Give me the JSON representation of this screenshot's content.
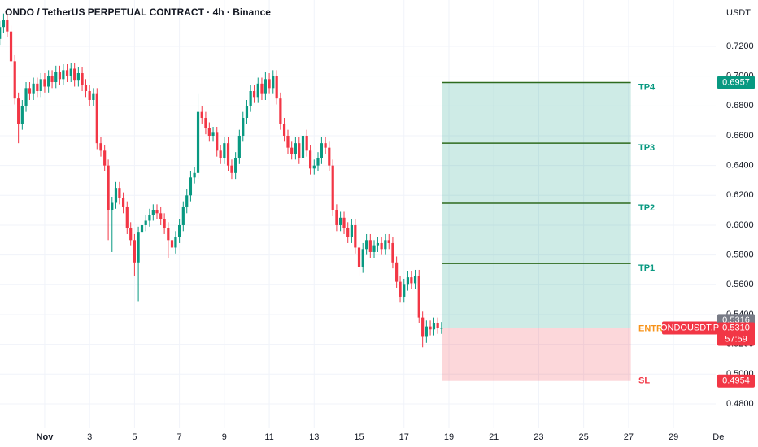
{
  "chart_data": {
    "type": "candlestick",
    "title": "ONDO / TetherUS PERPETUAL CONTRACT · 4h · Binance",
    "currency": "USDT",
    "up_color": "#089981",
    "down_color": "#f23645",
    "grid": true,
    "xlim": [
      -0.99,
      30.88
    ],
    "xticks": [
      {
        "value": 1,
        "label": "Nov"
      },
      3,
      5,
      7,
      9,
      11,
      13,
      15,
      17,
      19,
      21,
      23,
      25,
      27,
      29,
      {
        "value": 31,
        "label": "De"
      }
    ],
    "ylim": [
      0.4636,
      0.7511
    ],
    "yticks": [
      {
        "value": 0.48,
        "label": "0.4800"
      },
      {
        "value": 0.5,
        "label": "0.5000"
      },
      {
        "value": 0.52,
        "label": "0.5200"
      },
      {
        "value": 0.54,
        "label": "0.5400"
      },
      {
        "value": 0.56,
        "label": "0.5600"
      },
      {
        "value": 0.58,
        "label": "0.5800"
      },
      {
        "value": 0.6,
        "label": "0.6000"
      },
      {
        "value": 0.62,
        "label": "0.6200"
      },
      {
        "value": 0.64,
        "label": "0.6400"
      },
      {
        "value": 0.66,
        "label": "0.6600"
      },
      {
        "value": 0.68,
        "label": "0.6800"
      },
      {
        "value": 0.7,
        "label": "0.7000"
      },
      {
        "value": 0.72,
        "label": "0.7200"
      }
    ],
    "x": [
      -1,
      -0.83,
      -0.67,
      -0.5,
      -0.33,
      -0.17,
      0,
      0.17,
      0.33,
      0.5,
      0.67,
      0.83,
      1,
      1.17,
      1.33,
      1.5,
      1.67,
      1.83,
      2,
      2.17,
      2.33,
      2.5,
      2.67,
      2.83,
      3,
      3.17,
      3.33,
      3.5,
      3.67,
      3.83,
      4,
      4.17,
      4.33,
      4.5,
      4.67,
      4.83,
      5,
      5.17,
      5.33,
      5.5,
      5.67,
      5.83,
      6,
      6.17,
      6.33,
      6.5,
      6.67,
      6.83,
      7,
      7.17,
      7.33,
      7.5,
      7.67,
      7.83,
      8,
      8.17,
      8.33,
      8.5,
      8.67,
      8.83,
      9,
      9.17,
      9.33,
      9.5,
      9.67,
      9.83,
      10,
      10.17,
      10.33,
      10.5,
      10.67,
      10.83,
      11,
      11.17,
      11.33,
      11.5,
      11.67,
      11.83,
      12,
      12.17,
      12.33,
      12.5,
      12.67,
      12.83,
      13,
      13.17,
      13.33,
      13.5,
      13.67,
      13.83,
      14,
      14.17,
      14.33,
      14.5,
      14.67,
      14.83,
      15,
      15.17,
      15.33,
      15.5,
      15.67,
      15.83,
      16,
      16.17,
      16.33,
      16.5,
      16.67,
      16.83,
      17,
      17.17,
      17.33,
      17.5,
      17.67,
      17.83,
      18,
      18.17,
      18.33,
      18.5,
      18.67
    ],
    "open": [
      0.725,
      0.733,
      0.738,
      0.73,
      0.71,
      0.685,
      0.668,
      0.68,
      0.692,
      0.688,
      0.695,
      0.69,
      0.698,
      0.693,
      0.7,
      0.696,
      0.703,
      0.698,
      0.704,
      0.7,
      0.705,
      0.697,
      0.702,
      0.694,
      0.69,
      0.684,
      0.688,
      0.655,
      0.65,
      0.64,
      0.61,
      0.615,
      0.625,
      0.618,
      0.612,
      0.598,
      0.59,
      0.575,
      0.595,
      0.6,
      0.603,
      0.607,
      0.61,
      0.608,
      0.604,
      0.598,
      0.59,
      0.585,
      0.592,
      0.6,
      0.612,
      0.62,
      0.632,
      0.635,
      0.676,
      0.672,
      0.665,
      0.66,
      0.662,
      0.65,
      0.645,
      0.655,
      0.64,
      0.635,
      0.645,
      0.66,
      0.672,
      0.68,
      0.69,
      0.686,
      0.695,
      0.688,
      0.698,
      0.692,
      0.7,
      0.685,
      0.668,
      0.66,
      0.652,
      0.648,
      0.655,
      0.645,
      0.66,
      0.65,
      0.638,
      0.64,
      0.645,
      0.655,
      0.652,
      0.64,
      0.61,
      0.6,
      0.605,
      0.598,
      0.592,
      0.6,
      0.585,
      0.572,
      0.584,
      0.59,
      0.582,
      0.586,
      0.588,
      0.584,
      0.59,
      0.588,
      0.575,
      0.562,
      0.552,
      0.56,
      0.565,
      0.561,
      0.566,
      0.538,
      0.525,
      0.532,
      0.53,
      0.534,
      0.531
    ],
    "high": [
      0.737,
      0.742,
      0.742,
      0.734,
      0.714,
      0.689,
      0.684,
      0.696,
      0.696,
      0.699,
      0.699,
      0.702,
      0.702,
      0.704,
      0.704,
      0.707,
      0.707,
      0.708,
      0.708,
      0.709,
      0.709,
      0.706,
      0.706,
      0.698,
      0.694,
      0.692,
      0.692,
      0.659,
      0.654,
      0.644,
      0.619,
      0.629,
      0.629,
      0.622,
      0.616,
      0.602,
      0.594,
      0.599,
      0.604,
      0.607,
      0.611,
      0.614,
      0.614,
      0.612,
      0.608,
      0.602,
      0.594,
      0.596,
      0.604,
      0.616,
      0.624,
      0.636,
      0.639,
      0.688,
      0.68,
      0.676,
      0.669,
      0.666,
      0.666,
      0.654,
      0.659,
      0.659,
      0.644,
      0.649,
      0.664,
      0.676,
      0.684,
      0.694,
      0.694,
      0.699,
      0.699,
      0.703,
      0.702,
      0.704,
      0.704,
      0.689,
      0.672,
      0.664,
      0.656,
      0.659,
      0.659,
      0.664,
      0.664,
      0.654,
      0.644,
      0.649,
      0.659,
      0.659,
      0.656,
      0.644,
      0.614,
      0.609,
      0.609,
      0.602,
      0.604,
      0.604,
      0.589,
      0.588,
      0.594,
      0.594,
      0.59,
      0.592,
      0.592,
      0.594,
      0.594,
      0.592,
      0.579,
      0.566,
      0.564,
      0.569,
      0.569,
      0.57,
      0.57,
      0.542,
      0.536,
      0.536,
      0.538,
      0.538,
      0.535
    ],
    "low": [
      0.721,
      0.729,
      0.726,
      0.706,
      0.681,
      0.655,
      0.664,
      0.676,
      0.684,
      0.684,
      0.686,
      0.686,
      0.689,
      0.689,
      0.692,
      0.692,
      0.694,
      0.694,
      0.696,
      0.696,
      0.693,
      0.693,
      0.69,
      0.686,
      0.68,
      0.68,
      0.651,
      0.646,
      0.636,
      0.59,
      0.582,
      0.611,
      0.614,
      0.608,
      0.594,
      0.586,
      0.566,
      0.549,
      0.591,
      0.596,
      0.599,
      0.603,
      0.604,
      0.6,
      0.594,
      0.578,
      0.572,
      0.581,
      0.588,
      0.596,
      0.608,
      0.616,
      0.628,
      0.631,
      0.668,
      0.661,
      0.656,
      0.656,
      0.646,
      0.641,
      0.641,
      0.636,
      0.631,
      0.631,
      0.641,
      0.656,
      0.668,
      0.676,
      0.682,
      0.682,
      0.684,
      0.684,
      0.688,
      0.688,
      0.681,
      0.664,
      0.656,
      0.648,
      0.644,
      0.644,
      0.641,
      0.641,
      0.646,
      0.634,
      0.634,
      0.636,
      0.641,
      0.648,
      0.636,
      0.606,
      0.596,
      0.596,
      0.594,
      0.588,
      0.588,
      0.581,
      0.566,
      0.568,
      0.58,
      0.578,
      0.578,
      0.582,
      0.58,
      0.58,
      0.584,
      0.571,
      0.558,
      0.548,
      0.548,
      0.556,
      0.557,
      0.557,
      0.534,
      0.518,
      0.521,
      0.526,
      0.526,
      0.527,
      0.527
    ],
    "close": [
      0.733,
      0.738,
      0.73,
      0.71,
      0.685,
      0.668,
      0.68,
      0.692,
      0.688,
      0.695,
      0.69,
      0.698,
      0.693,
      0.7,
      0.696,
      0.703,
      0.698,
      0.704,
      0.7,
      0.705,
      0.697,
      0.702,
      0.694,
      0.69,
      0.684,
      0.688,
      0.655,
      0.65,
      0.64,
      0.61,
      0.615,
      0.625,
      0.618,
      0.612,
      0.598,
      0.59,
      0.575,
      0.595,
      0.6,
      0.603,
      0.607,
      0.61,
      0.608,
      0.604,
      0.598,
      0.59,
      0.585,
      0.592,
      0.6,
      0.612,
      0.62,
      0.632,
      0.635,
      0.676,
      0.672,
      0.665,
      0.66,
      0.662,
      0.65,
      0.645,
      0.655,
      0.64,
      0.635,
      0.645,
      0.66,
      0.672,
      0.68,
      0.69,
      0.686,
      0.695,
      0.688,
      0.698,
      0.692,
      0.7,
      0.685,
      0.668,
      0.66,
      0.652,
      0.648,
      0.655,
      0.645,
      0.66,
      0.65,
      0.638,
      0.64,
      0.645,
      0.655,
      0.652,
      0.64,
      0.61,
      0.6,
      0.605,
      0.598,
      0.592,
      0.6,
      0.585,
      0.572,
      0.584,
      0.59,
      0.582,
      0.586,
      0.588,
      0.584,
      0.59,
      0.588,
      0.575,
      0.562,
      0.552,
      0.56,
      0.565,
      0.561,
      0.566,
      0.538,
      0.525,
      0.532,
      0.53,
      0.534,
      0.531,
      0.531
    ],
    "position": {
      "x": [
        18.68,
        27.1
      ],
      "entry": {
        "name": "ENTRY",
        "value": 0.531
      },
      "stop": {
        "name": "SL",
        "value": 0.4954,
        "label": "0.4954"
      },
      "targets": [
        {
          "name": "TP1",
          "value": 0.5743
        },
        {
          "name": "TP2",
          "value": 0.6147
        },
        {
          "name": "TP3",
          "value": 0.655
        },
        {
          "name": "TP4",
          "value": 0.6957,
          "label": "0.6957"
        }
      ]
    },
    "symbol_tag": "ONDOUSDT.P",
    "last_price": {
      "value": 0.531,
      "label": "0.5310"
    },
    "countdown": "57:59",
    "marker_price": {
      "value": 0.5316,
      "label": "0.5316"
    }
  }
}
